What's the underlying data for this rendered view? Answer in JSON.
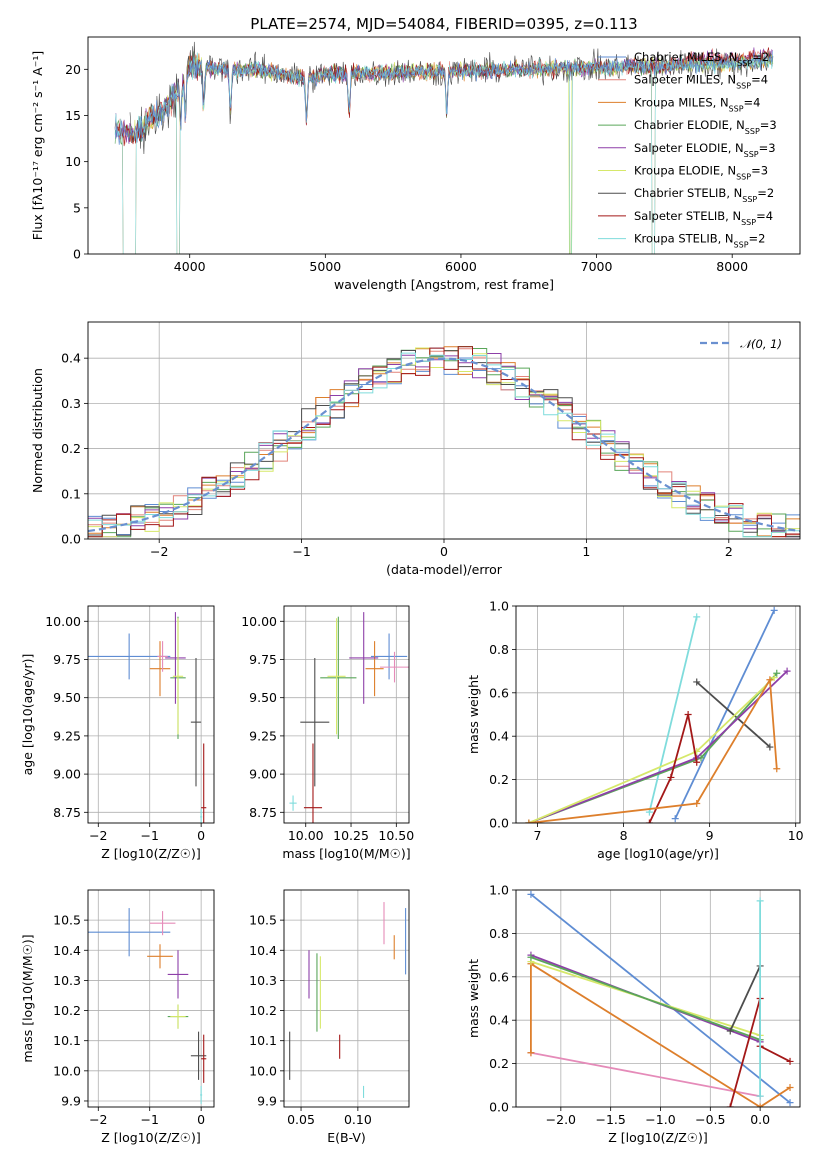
{
  "figure_title": "PLATE=2574, MJD=54084, FIBERID=0395, z=0.113",
  "colors": {
    "chabrier_miles": "#5f8dd3",
    "salpeter_miles": "#e2847a",
    "kroupa_miles": "#dd7f2c",
    "chabrier_elodie": "#5aa65a",
    "salpeter_elodie": "#8d3fa8",
    "kroupa_elodie": "#d6e86a",
    "chabrier_stelib": "#4d4d4d",
    "salpeter_stelib": "#a31818",
    "kroupa_stelib": "#7fdcdc",
    "extra_pink": "#e58bb9",
    "extra_lime": "#c8f070"
  },
  "chart_data": [
    {
      "id": "spectrum",
      "type": "line",
      "xlabel": "wavelength [Angstrom, rest frame]",
      "ylabel": "Flux [fλ10⁻¹⁷ erg cm⁻² s⁻¹ A⁻¹]",
      "xlim": [
        3250,
        8500
      ],
      "ylim": [
        0,
        23.5
      ],
      "xticks": [
        4000,
        5000,
        6000,
        7000,
        8000
      ],
      "yticks": [
        0,
        5,
        10,
        15,
        20
      ],
      "grid": false,
      "legend_position": "right",
      "legend": [
        "Chabrier MILES, NSSP=2",
        "Salpeter MILES, NSSP=4",
        "Kroupa MILES, NSSP=4",
        "Chabrier ELODIE, NSSP=3",
        "Salpeter ELODIE, NSSP=3",
        "Kroupa ELODIE, NSSP=3",
        "Chabrier STELIB, NSSP=2",
        "Salpeter STELIB, NSSP=4",
        "Kroupa STELIB, NSSP=2"
      ],
      "continuum": [
        [
          3450,
          13.5
        ],
        [
          3600,
          12.8
        ],
        [
          3700,
          14.5
        ],
        [
          3800,
          15.5
        ],
        [
          3900,
          17.5
        ],
        [
          4000,
          20.5
        ],
        [
          4100,
          20.2
        ],
        [
          4300,
          20
        ],
        [
          4500,
          20
        ],
        [
          4861,
          19
        ],
        [
          5000,
          19.5
        ],
        [
          5500,
          19.7
        ],
        [
          6000,
          19.8
        ],
        [
          6500,
          20
        ],
        [
          7000,
          20.2
        ],
        [
          7500,
          20.4
        ],
        [
          8000,
          20.6
        ],
        [
          8300,
          21
        ]
      ],
      "absorption_lines": [
        3934,
        3968,
        4102,
        4300,
        4861,
        5175,
        5895
      ],
      "dropouts": [
        [
          3505,
          3600
        ],
        [
          3905,
          3925
        ],
        [
          6800,
          6820
        ],
        [
          7410,
          7430
        ]
      ]
    },
    {
      "id": "residuals",
      "type": "histogram",
      "xlabel": "(data-model)/error",
      "ylabel": "Normed distribution",
      "xlim": [
        -2.5,
        2.5
      ],
      "ylim": [
        0,
        0.48
      ],
      "xticks": [
        -2,
        -1,
        0,
        1,
        2
      ],
      "yticks": [
        0.0,
        0.1,
        0.2,
        0.3,
        0.4
      ],
      "grid": true,
      "legend_position": "top-right",
      "legend": [
        "𝒩(0, 1)"
      ],
      "bin_width": 0.1
    },
    {
      "id": "age_vs_Z",
      "type": "scatter",
      "xlabel": "Z [log10(Z/Z☉)]",
      "ylabel": "age  [log10(age/yr)]",
      "xlim": [
        -2.2,
        0.25
      ],
      "ylim": [
        8.68,
        10.1
      ],
      "xticks": [
        -2,
        -1,
        0
      ],
      "yticks": [
        8.75,
        9.0,
        9.25,
        9.5,
        9.75,
        10.0
      ],
      "grid": true,
      "points": [
        {
          "color": "chabrier_miles",
          "x": -1.4,
          "y": 9.77,
          "xe": 0.8,
          "ye": 0.15
        },
        {
          "color": "kroupa_miles",
          "x": -0.8,
          "y": 9.69,
          "xe": 0.2,
          "ye": 0.18
        },
        {
          "color": "extra_pink",
          "x": -0.75,
          "y": 9.77,
          "xe": 0.1,
          "ye": 0.1
        },
        {
          "color": "chabrier_elodie",
          "x": -0.45,
          "y": 9.63,
          "xe": 0.15,
          "ye": 0.4
        },
        {
          "color": "salpeter_elodie",
          "x": -0.5,
          "y": 9.76,
          "xe": 0.2,
          "ye": 0.3
        },
        {
          "color": "kroupa_elodie",
          "x": -0.45,
          "y": 9.64,
          "xe": 0.1,
          "ye": 0.38
        },
        {
          "color": "chabrier_stelib",
          "x": -0.1,
          "y": 9.34,
          "xe": 0.1,
          "ye": 0.42
        },
        {
          "color": "salpeter_stelib",
          "x": 0.05,
          "y": 8.78,
          "xe": 0.05,
          "ye": 0.42
        },
        {
          "color": "kroupa_stelib",
          "x": 0.0,
          "y": 8.72,
          "xe": 0.02,
          "ye": 0.05
        }
      ]
    },
    {
      "id": "age_vs_mass",
      "type": "scatter",
      "xlabel": "mass [log10(M/M☉)]",
      "ylabel": "",
      "xlim": [
        9.88,
        10.57
      ],
      "ylim": [
        8.68,
        10.1
      ],
      "xticks": [
        10.0,
        10.25,
        10.5
      ],
      "yticks": [
        8.75,
        9.0,
        9.25,
        9.5,
        9.75,
        10.0
      ],
      "grid": true,
      "points": [
        {
          "color": "chabrier_miles",
          "x": 10.46,
          "y": 9.77,
          "xe": 0.1,
          "ye": 0.15
        },
        {
          "color": "kroupa_miles",
          "x": 10.38,
          "y": 9.69,
          "xe": 0.05,
          "ye": 0.18
        },
        {
          "color": "extra_pink",
          "x": 10.49,
          "y": 9.7,
          "xe": 0.08,
          "ye": 0.1
        },
        {
          "color": "chabrier_elodie",
          "x": 10.18,
          "y": 9.63,
          "xe": 0.1,
          "ye": 0.4
        },
        {
          "color": "salpeter_elodie",
          "x": 10.32,
          "y": 9.76,
          "xe": 0.08,
          "ye": 0.3
        },
        {
          "color": "kroupa_elodie",
          "x": 10.17,
          "y": 9.64,
          "xe": 0.05,
          "ye": 0.38
        },
        {
          "color": "chabrier_stelib",
          "x": 10.05,
          "y": 9.34,
          "xe": 0.08,
          "ye": 0.42
        },
        {
          "color": "salpeter_stelib",
          "x": 10.04,
          "y": 8.78,
          "xe": 0.05,
          "ye": 0.42
        },
        {
          "color": "kroupa_stelib",
          "x": 9.93,
          "y": 8.81,
          "xe": 0.02,
          "ye": 0.05
        }
      ]
    },
    {
      "id": "weight_vs_age",
      "type": "line",
      "xlabel": "age  [log10(age/yr)]",
      "ylabel": "mass weight",
      "xlim": [
        6.75,
        10.05
      ],
      "ylim": [
        0,
        1.0
      ],
      "xticks": [
        7,
        8,
        9,
        10
      ],
      "yticks": [
        0.0,
        0.2,
        0.4,
        0.6,
        0.8,
        1.0
      ],
      "grid": true,
      "series": [
        {
          "color": "chabrier_miles",
          "points": [
            [
              8.6,
              0.02
            ],
            [
              9.75,
              0.98
            ]
          ]
        },
        {
          "color": "kroupa_stelib",
          "points": [
            [
              8.3,
              0.05
            ],
            [
              8.85,
              0.95
            ]
          ]
        },
        {
          "color": "chabrier_stelib",
          "points": [
            [
              8.85,
              0.65
            ],
            [
              9.7,
              0.35
            ]
          ]
        },
        {
          "color": "chabrier_elodie",
          "points": [
            [
              6.9,
              0.0
            ],
            [
              8.9,
              0.3
            ],
            [
              9.78,
              0.69
            ]
          ]
        },
        {
          "color": "salpeter_elodie",
          "points": [
            [
              6.9,
              0.0
            ],
            [
              8.85,
              0.3
            ],
            [
              9.9,
              0.7
            ]
          ]
        },
        {
          "color": "kroupa_elodie",
          "points": [
            [
              6.9,
              0.0
            ],
            [
              8.85,
              0.33
            ],
            [
              9.75,
              0.67
            ]
          ]
        },
        {
          "color": "salpeter_stelib",
          "points": [
            [
              8.3,
              0.0
            ],
            [
              8.55,
              0.21
            ],
            [
              8.75,
              0.5
            ],
            [
              8.85,
              0.28
            ]
          ]
        },
        {
          "color": "kroupa_miles",
          "points": [
            [
              6.9,
              0.0
            ],
            [
              8.85,
              0.09
            ],
            [
              9.7,
              0.66
            ],
            [
              9.78,
              0.25
            ]
          ]
        }
      ]
    },
    {
      "id": "mass_vs_Z",
      "type": "scatter",
      "xlabel": "Z [log10(Z/Z☉)]",
      "ylabel": "mass [log10(M/M☉)]",
      "xlim": [
        -2.2,
        0.25
      ],
      "ylim": [
        9.88,
        10.6
      ],
      "xticks": [
        -2,
        -1,
        0
      ],
      "yticks": [
        9.9,
        10.0,
        10.1,
        10.2,
        10.3,
        10.4,
        10.5
      ],
      "grid": true,
      "points": [
        {
          "color": "chabrier_miles",
          "x": -1.4,
          "y": 10.46,
          "xe": 0.8,
          "ye": 0.08
        },
        {
          "color": "extra_pink",
          "x": -0.75,
          "y": 10.49,
          "xe": 0.25,
          "ye": 0.04
        },
        {
          "color": "kroupa_miles",
          "x": -0.8,
          "y": 10.38,
          "xe": 0.25,
          "ye": 0.04
        },
        {
          "color": "salpeter_elodie",
          "x": -0.45,
          "y": 10.32,
          "xe": 0.2,
          "ye": 0.08
        },
        {
          "color": "chabrier_elodie",
          "x": -0.45,
          "y": 10.18,
          "xe": 0.2,
          "ye": 0.04
        },
        {
          "color": "kroupa_elodie",
          "x": -0.45,
          "y": 10.18,
          "xe": 0.15,
          "ye": 0.04
        },
        {
          "color": "chabrier_stelib",
          "x": -0.05,
          "y": 10.05,
          "xe": 0.15,
          "ye": 0.08
        },
        {
          "color": "salpeter_stelib",
          "x": 0.05,
          "y": 10.04,
          "xe": 0.05,
          "ye": 0.08
        },
        {
          "color": "kroupa_stelib",
          "x": 0.0,
          "y": 9.92,
          "xe": 0.02,
          "ye": 0.03
        }
      ]
    },
    {
      "id": "mass_vs_ebv",
      "type": "scatter",
      "xlabel": "E(B-V)",
      "ylabel": "",
      "xlim": [
        0.035,
        0.145
      ],
      "ylim": [
        9.88,
        10.6
      ],
      "xticks": [
        0.05,
        0.1
      ],
      "yticks": [
        9.9,
        10.0,
        10.1,
        10.2,
        10.3,
        10.4,
        10.5
      ],
      "grid": true,
      "points": [
        {
          "color": "chabrier_stelib",
          "x": 0.04,
          "y": 10.05,
          "ye": 0.08
        },
        {
          "color": "salpeter_elodie",
          "x": 0.057,
          "y": 10.32,
          "ye": 0.08
        },
        {
          "color": "chabrier_elodie",
          "x": 0.064,
          "y": 10.26,
          "ye": 0.13
        },
        {
          "color": "kroupa_elodie",
          "x": 0.067,
          "y": 10.26,
          "ye": 0.12
        },
        {
          "color": "salpeter_stelib",
          "x": 0.084,
          "y": 10.08,
          "ye": 0.04
        },
        {
          "color": "kroupa_stelib",
          "x": 0.105,
          "y": 9.93,
          "ye": 0.02
        },
        {
          "color": "extra_pink",
          "x": 0.123,
          "y": 10.49,
          "ye": 0.07
        },
        {
          "color": "kroupa_miles",
          "x": 0.132,
          "y": 10.41,
          "ye": 0.04
        },
        {
          "color": "chabrier_miles",
          "x": 0.142,
          "y": 10.43,
          "ye": 0.11
        }
      ]
    },
    {
      "id": "weight_vs_Z",
      "type": "line",
      "xlabel": "Z [log10(Z/Z☉)]",
      "ylabel": "mass weight",
      "xlim": [
        -2.45,
        0.4
      ],
      "ylim": [
        0,
        1.0
      ],
      "xticks": [
        -2.0,
        -1.5,
        -1.0,
        -0.5,
        0.0
      ],
      "yticks": [
        0.0,
        0.2,
        0.4,
        0.6,
        0.8,
        1.0
      ],
      "grid": true,
      "series": [
        {
          "color": "chabrier_miles",
          "points": [
            [
              -2.3,
              0.98
            ],
            [
              0.3,
              0.02
            ]
          ]
        },
        {
          "color": "extra_pink",
          "points": [
            [
              -2.3,
              0.25
            ],
            [
              0.0,
              0.05
            ]
          ]
        },
        {
          "color": "kroupa_miles",
          "points": [
            [
              -2.3,
              0.25
            ],
            [
              -2.3,
              0.66
            ],
            [
              0.0,
              0.0
            ],
            [
              0.3,
              0.09
            ]
          ]
        },
        {
          "color": "salpeter_elodie",
          "points": [
            [
              -2.3,
              0.7
            ],
            [
              0.0,
              0.3
            ]
          ]
        },
        {
          "color": "kroupa_elodie",
          "points": [
            [
              -2.3,
              0.67
            ],
            [
              0.0,
              0.33
            ]
          ]
        },
        {
          "color": "chabrier_elodie",
          "points": [
            [
              -2.3,
              0.69
            ],
            [
              0.0,
              0.31
            ]
          ]
        },
        {
          "color": "chabrier_stelib",
          "points": [
            [
              -0.3,
              0.35
            ],
            [
              0.0,
              0.65
            ]
          ]
        },
        {
          "color": "salpeter_stelib",
          "points": [
            [
              -0.3,
              0.0
            ],
            [
              0.0,
              0.5
            ],
            [
              0.0,
              0.28
            ],
            [
              0.3,
              0.21
            ]
          ]
        },
        {
          "color": "kroupa_stelib",
          "points": [
            [
              0.0,
              0.05
            ],
            [
              0.0,
              0.95
            ]
          ]
        }
      ]
    }
  ]
}
